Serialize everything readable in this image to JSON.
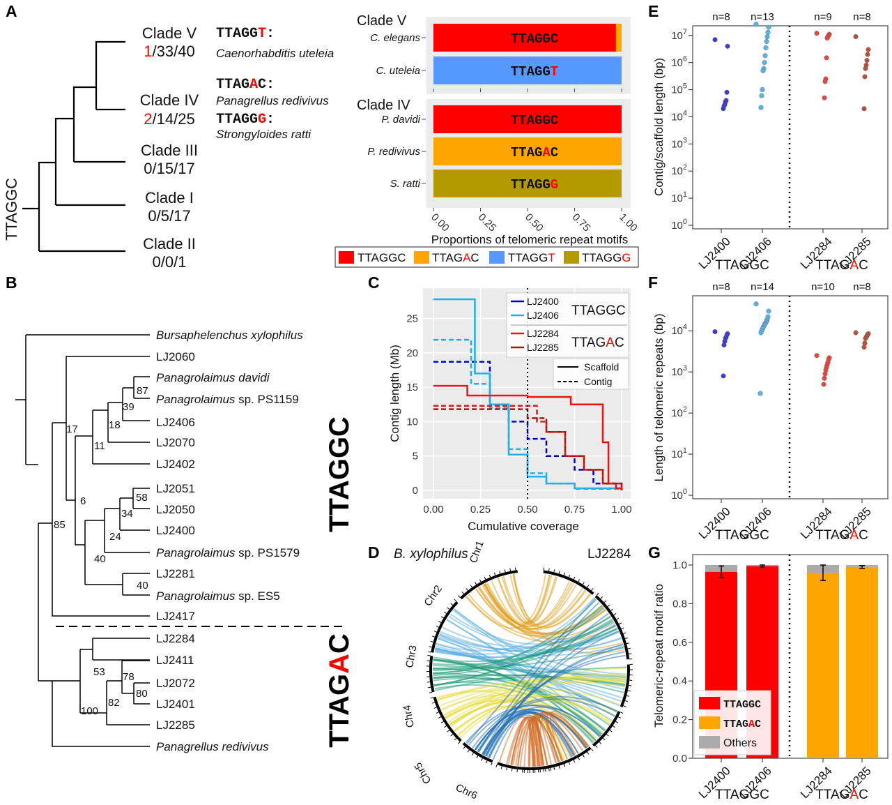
{
  "panels": {
    "A": "A",
    "B": "B",
    "C": "C",
    "D": "D",
    "E": "E",
    "F": "F",
    "G": "G"
  },
  "colors": {
    "TTAGGC": "#ff0000",
    "TTAGAC": "#ffa500",
    "TTAGGT": "#5599ff",
    "TTAGGG": "#b39a00",
    "others": "#aaaaaa",
    "highlight": "#ff0000",
    "LJ2400": "#3b3bd6",
    "LJ2406": "#56b4e9",
    "LJ2284": "#e8463c",
    "LJ2285": "#b8523a"
  },
  "panelA": {
    "root_label": "TTAGGC",
    "clades": [
      {
        "name": "Clade V",
        "counts_red": "1",
        "counts_rest": "/33/40"
      },
      {
        "name": "Clade IV",
        "counts_red": "2",
        "counts_rest": "/14/25"
      },
      {
        "name": "Clade III",
        "counts": "0/15/17"
      },
      {
        "name": "Clade I",
        "counts": "0/5/17"
      },
      {
        "name": "Clade II",
        "counts": "0/0/1"
      }
    ],
    "annotations": [
      {
        "motif_pre": "TTAGG",
        "motif_red": "T",
        "motif_post": ":",
        "species": "Caenorhabditis uteleia"
      },
      {
        "motif_pre": "TTAG",
        "motif_red": "A",
        "motif_post": "C:",
        "species": "Panagrellus redivivus"
      },
      {
        "motif_pre": "TTAGG",
        "motif_red": "G",
        "motif_post": ":",
        "species": "Strongyloides ratti"
      }
    ],
    "bar_chart": {
      "group_V": "Clade V",
      "group_IV": "Clade IV",
      "xlabel": "Proportions of telomeric repeat motifs",
      "xticks": [
        "0.00",
        "0.25",
        "0.50",
        "0.75",
        "1.00"
      ],
      "legend": [
        {
          "pre": "TTAGGC",
          "red": "",
          "post": ""
        },
        {
          "pre": "TTAG",
          "red": "A",
          "post": "C"
        },
        {
          "pre": "TTAGG",
          "red": "T",
          "post": ""
        },
        {
          "pre": "TTAGG",
          "red": "G",
          "post": ""
        }
      ]
    }
  },
  "panelB": {
    "group_GC": "TTAGGC",
    "group_AC_pre": "TTAG",
    "group_AC_red": "A",
    "group_AC_post": "C",
    "taxa": [
      {
        "name": "Bursaphelenchus xylophilus",
        "italic": true
      },
      {
        "name": "LJ2060"
      },
      {
        "name": "Panagrolaimus davidi",
        "italic": true
      },
      {
        "name_i": "Panagrolaimus",
        "name_r": " sp. PS1159"
      },
      {
        "name": "LJ2406"
      },
      {
        "name": "LJ2070"
      },
      {
        "name": "LJ2402"
      },
      {
        "name": "LJ2051"
      },
      {
        "name": "LJ2050"
      },
      {
        "name": "LJ2400"
      },
      {
        "name_i": "Panagrolaimus",
        "name_r": " sp. PS1579"
      },
      {
        "name": "LJ2281"
      },
      {
        "name_i": "Panagrolaimus",
        "name_r": " sp. ES5"
      },
      {
        "name": "LJ2417"
      },
      {
        "name": "LJ2284"
      },
      {
        "name": "LJ2411"
      },
      {
        "name": "LJ2072"
      },
      {
        "name": "LJ2401"
      },
      {
        "name": "LJ2285"
      },
      {
        "name": "Panagrellus redivivus",
        "italic": true
      }
    ],
    "bootstrap": [
      "87",
      "39",
      "18",
      "17",
      "11",
      "58",
      "34",
      "6",
      "24",
      "85",
      "40",
      "40",
      "78",
      "53",
      "80",
      "82",
      "100"
    ]
  },
  "panelC": {
    "xlabel": "Cumulative coverage",
    "ylabel": "Contig length (Mb)",
    "xticks": [
      "0.00",
      "0.25",
      "0.50",
      "0.75",
      "1.00"
    ],
    "yticks": [
      "0",
      "5",
      "10",
      "15",
      "20",
      "25"
    ],
    "legend_group1": "TTAGGC",
    "legend_group2_pre": "TTAG",
    "legend_group2_red": "A",
    "legend_group2_post": "C",
    "legend_scaffold": "Scaffold",
    "legend_contig": "Contig"
  },
  "panelD": {
    "left_title": "B. xylophilus",
    "right_title": "LJ2284",
    "chromosomes": [
      "Chr1",
      "Chr2",
      "Chr3",
      "Chr4",
      "Chr5",
      "Chr6"
    ]
  },
  "panelE": {
    "ylabel": "Contig/scaffold length (bp)",
    "n_labels": [
      "n=8",
      "n=13",
      "n=9",
      "n=8"
    ]
  },
  "panelF": {
    "ylabel": "Length of telomeric repeats (bp)",
    "n_labels": [
      "n=8",
      "n=14",
      "n=10",
      "n=8"
    ]
  },
  "panelG": {
    "ylabel": "Telomeric-repeat motif ratio",
    "yticks": [
      "0.0",
      "0.2",
      "0.4",
      "0.6",
      "0.8",
      "1.0"
    ],
    "legend": [
      {
        "pre": "TTAGGC",
        "red": "",
        "post": ""
      },
      {
        "pre": "TTAG",
        "red": "A",
        "post": "C"
      },
      {
        "pre": "Others",
        "red": "",
        "post": ""
      }
    ]
  },
  "shared_x": {
    "strains": [
      "LJ2400",
      "LJ2406",
      "LJ2284",
      "LJ2285"
    ],
    "group1": "TTAGGC",
    "group2_pre": "TTAG",
    "group2_red": "A",
    "group2_post": "C"
  },
  "chart_data": [
    {
      "type": "bar",
      "title": "",
      "orientation": "horizontal-stacked",
      "categories": [
        "C. elegans",
        "C. uteleia",
        "P. davidi",
        "P. redivivus",
        "S. ratti"
      ],
      "series": [
        {
          "name": "TTAGGC",
          "values": [
            0.97,
            0.0,
            1.0,
            0.0,
            0.0
          ]
        },
        {
          "name": "TTAGAC",
          "values": [
            0.03,
            0.0,
            0.0,
            1.0,
            0.0
          ]
        },
        {
          "name": "TTAGGT",
          "values": [
            0.0,
            1.0,
            0.0,
            0.0,
            0.0
          ]
        },
        {
          "name": "TTAGGG",
          "values": [
            0.0,
            0.0,
            0.0,
            0.0,
            1.0
          ]
        }
      ],
      "bar_labels": [
        "TTAGGC",
        "TTAGGT",
        "TTAGGC",
        "TTAGAC",
        "TTAGGG"
      ],
      "xlabel": "Proportions of telomeric repeat motifs",
      "xlim": [
        0,
        1
      ]
    },
    {
      "type": "line",
      "xlabel": "Cumulative coverage",
      "ylabel": "Contig length (Mb)",
      "xlim": [
        0,
        1
      ],
      "ylim": [
        0,
        28
      ],
      "series": [
        {
          "name": "LJ2400",
          "style": "dashed",
          "x": [
            0,
            0.28,
            0.3,
            0.4,
            0.5,
            0.6,
            0.75,
            0.85,
            1.0
          ],
          "y": [
            18.7,
            18.7,
            12.5,
            10,
            7.5,
            5,
            3,
            1,
            0
          ]
        },
        {
          "name": "LJ2406",
          "style": "solid",
          "x": [
            0,
            0.12,
            0.22,
            0.3,
            0.4,
            0.5,
            0.6,
            0.75,
            1.0
          ],
          "y": [
            27.8,
            27.8,
            17,
            12.5,
            5.2,
            2,
            1,
            0.3,
            0
          ]
        },
        {
          "name": "LJ2406",
          "style": "dashed",
          "x": [
            0,
            0.08,
            0.2,
            0.3,
            0.4,
            0.5,
            0.6,
            0.75,
            1.0
          ],
          "y": [
            21.9,
            21.9,
            15.5,
            12,
            6,
            2.5,
            1,
            0.2,
            0
          ]
        },
        {
          "name": "LJ2284",
          "style": "solid",
          "x": [
            0,
            0.18,
            0.5,
            0.73,
            0.9,
            0.93,
            0.97,
            1.0
          ],
          "y": [
            15.2,
            13.8,
            13.6,
            12.5,
            7,
            1,
            0.3,
            0
          ]
        },
        {
          "name": "LJ2284",
          "style": "dashed",
          "x": [
            0,
            0.3,
            0.55,
            0.6,
            0.7,
            0.8,
            0.9,
            1.0
          ],
          "y": [
            12.3,
            12.3,
            10,
            8.5,
            5,
            3,
            1,
            0
          ]
        },
        {
          "name": "LJ2285",
          "style": "dashed",
          "x": [
            0,
            0.3,
            0.5,
            0.6,
            0.7,
            0.8,
            0.9,
            1.0
          ],
          "y": [
            11.8,
            11.8,
            10.5,
            8.5,
            5,
            3,
            1,
            0
          ]
        }
      ],
      "reference_line_x": 0.5,
      "grid": true
    },
    {
      "type": "scatter",
      "ylabel": "Contig/scaffold length (bp)",
      "yscale": "log",
      "ylim": [
        1,
        100000000
      ],
      "categories": [
        "LJ2400",
        "LJ2406",
        "LJ2284",
        "LJ2285"
      ],
      "series": [
        {
          "name": "LJ2400",
          "values": [
            7000000,
            4000000,
            80000,
            40000,
            35000,
            28000,
            25000,
            20000
          ]
        },
        {
          "name": "LJ2406",
          "values": [
            26000000,
            20000000,
            13000000,
            9000000,
            6000000,
            3500000,
            1800000,
            1000000,
            600000,
            500000,
            100000,
            60000,
            22000
          ]
        },
        {
          "name": "LJ2284",
          "values": [
            12000000,
            11000000,
            10000000,
            9000000,
            8000000,
            1500000,
            250000,
            200000,
            50000
          ]
        },
        {
          "name": "LJ2285",
          "values": [
            9000000,
            3000000,
            2000000,
            1200000,
            800000,
            600000,
            300000,
            20000
          ]
        }
      ]
    },
    {
      "type": "scatter",
      "ylabel": "Length of telomeric repeats (bp)",
      "yscale": "log",
      "ylim": [
        1,
        60000
      ],
      "categories": [
        "LJ2400",
        "LJ2406",
        "LJ2284",
        "LJ2285"
      ],
      "series": [
        {
          "name": "LJ2400",
          "values": [
            9500,
            8500,
            8000,
            7000,
            6500,
            5500,
            4500,
            800
          ]
        },
        {
          "name": "LJ2406",
          "values": [
            45000,
            30000,
            22000,
            19000,
            17000,
            16000,
            15000,
            14000,
            13000,
            12000,
            11000,
            10000,
            9000,
            300
          ]
        },
        {
          "name": "LJ2284",
          "values": [
            2500,
            2200,
            2000,
            1700,
            1500,
            1300,
            1100,
            900,
            700,
            500
          ]
        },
        {
          "name": "LJ2285",
          "values": [
            9000,
            8500,
            8000,
            7500,
            7000,
            6500,
            5000,
            4000
          ]
        }
      ]
    },
    {
      "type": "bar",
      "ylabel": "Telomeric-repeat motif ratio",
      "ylim": [
        0,
        1.05
      ],
      "categories": [
        "LJ2400",
        "LJ2406",
        "LJ2284",
        "LJ2285"
      ],
      "series": [
        {
          "name": "TTAGGC",
          "values": [
            0.965,
            0.995,
            0,
            0
          ]
        },
        {
          "name": "TTAGAC",
          "values": [
            0,
            0,
            0.96,
            0.99
          ]
        },
        {
          "name": "Others",
          "values": [
            0.035,
            0.005,
            0.04,
            0.01
          ]
        }
      ]
    }
  ]
}
